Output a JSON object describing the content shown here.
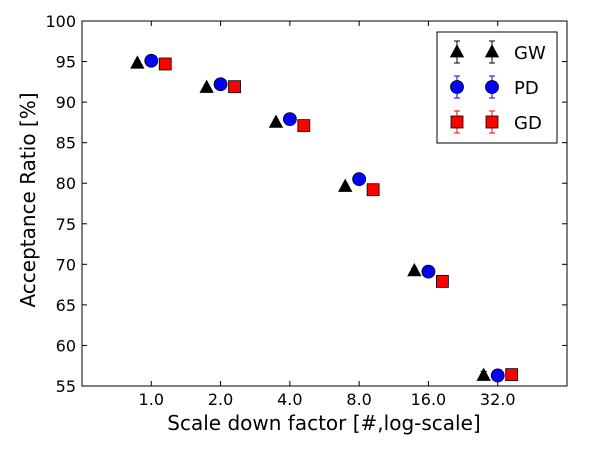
{
  "chart_data": {
    "type": "scatter",
    "title": "",
    "xlabel": "Scale down factor [#,log-scale]",
    "ylabel": "Acceptance Ratio [%]",
    "x_scale": "log2",
    "x_ticks": [
      1,
      2,
      4,
      8,
      16,
      32
    ],
    "x_tick_labels": [
      "1.0",
      "2.0",
      "4.0",
      "8.0",
      "16.0",
      "32.0"
    ],
    "xlim": [
      0.5,
      64
    ],
    "ylim": [
      55,
      100
    ],
    "y_ticks": [
      55,
      60,
      65,
      70,
      75,
      80,
      85,
      90,
      95,
      100
    ],
    "y_tick_labels": [
      "55",
      "60",
      "65",
      "70",
      "75",
      "80",
      "85",
      "90",
      "95",
      "100"
    ],
    "grid": false,
    "legend_position": "top-right",
    "series": [
      {
        "name": "GW",
        "marker": "triangle",
        "color": "#000000",
        "x": [
          0.87,
          1.74,
          3.48,
          6.96,
          13.9,
          27.8
        ],
        "y": [
          94.8,
          91.8,
          87.5,
          79.6,
          69.2,
          56.3
        ],
        "error": [
          0.3,
          0.3,
          0.3,
          0.3,
          0.3,
          0.5
        ]
      },
      {
        "name": "PD",
        "marker": "circle",
        "color": "#0000ff",
        "x": [
          1.0,
          2.0,
          4.0,
          8.0,
          16.0,
          32.0
        ],
        "y": [
          95.1,
          92.2,
          87.9,
          80.5,
          69.1,
          56.3
        ],
        "error": [
          0.3,
          0.3,
          0.3,
          0.3,
          0.3,
          0.3
        ]
      },
      {
        "name": "GD",
        "marker": "square",
        "color": "#ff0000",
        "x": [
          1.15,
          2.3,
          4.6,
          9.2,
          18.4,
          36.8
        ],
        "y": [
          94.7,
          91.9,
          87.1,
          79.2,
          67.9,
          56.4
        ],
        "error": [
          0.3,
          0.3,
          0.3,
          0.3,
          0.3,
          0.3
        ]
      }
    ]
  }
}
